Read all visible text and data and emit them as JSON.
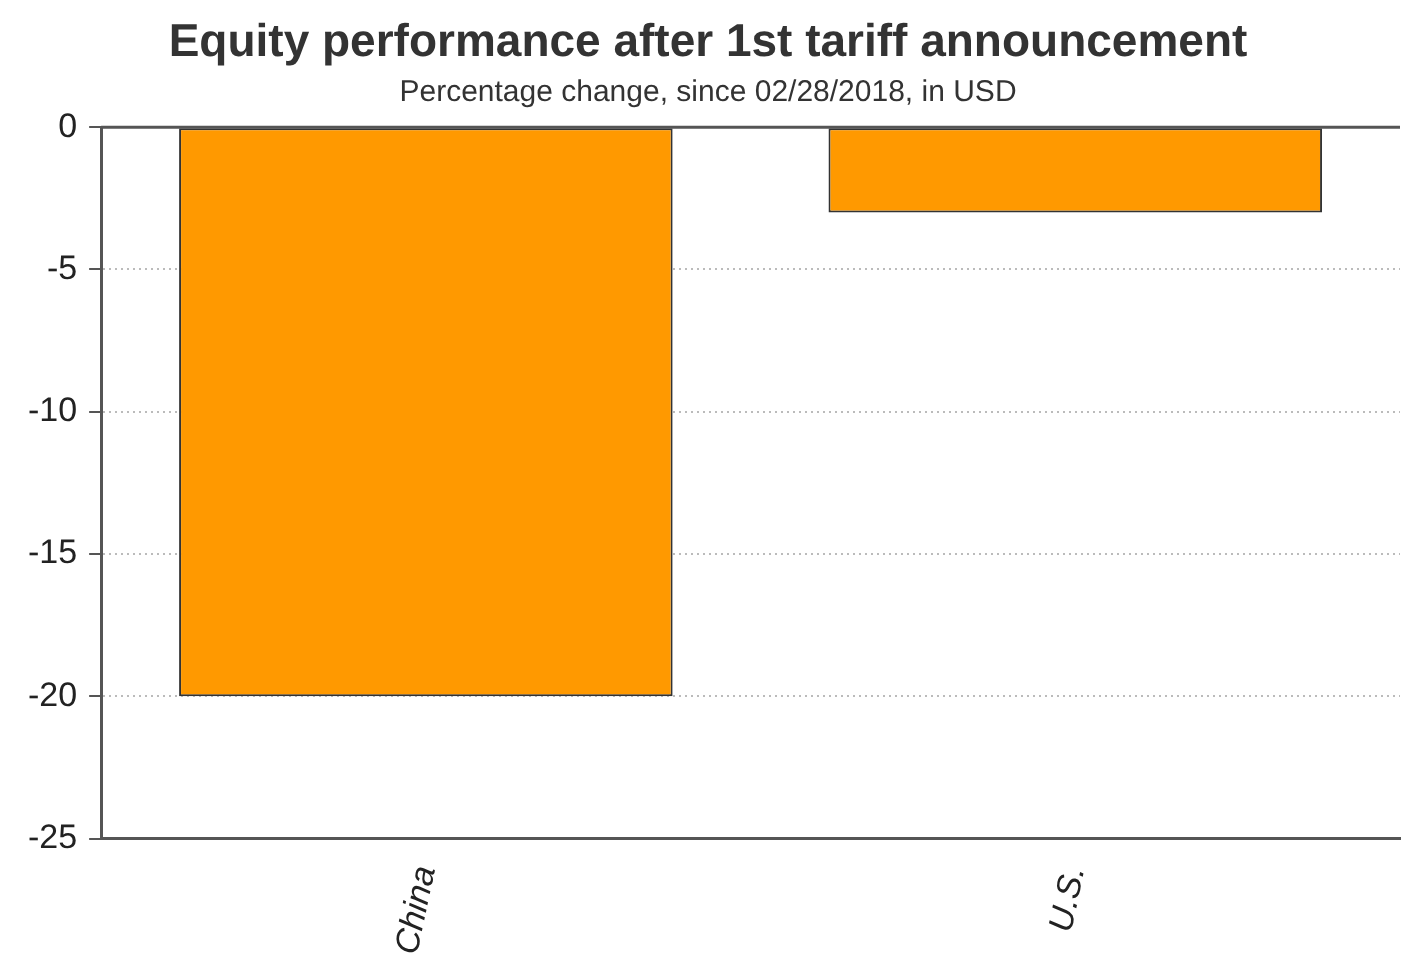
{
  "chart_data": {
    "type": "bar",
    "title": "Equity performance after 1st tariff announcement",
    "subtitle": "Percentage change, since 02/28/2018, in USD",
    "categories": [
      "China",
      "U.S."
    ],
    "values": [
      -20,
      -3
    ],
    "color": "#ff9900",
    "ylim": [
      -25,
      0
    ],
    "yticks": [
      -25,
      -20,
      -15,
      -10,
      -5,
      0
    ],
    "grid": "y"
  }
}
